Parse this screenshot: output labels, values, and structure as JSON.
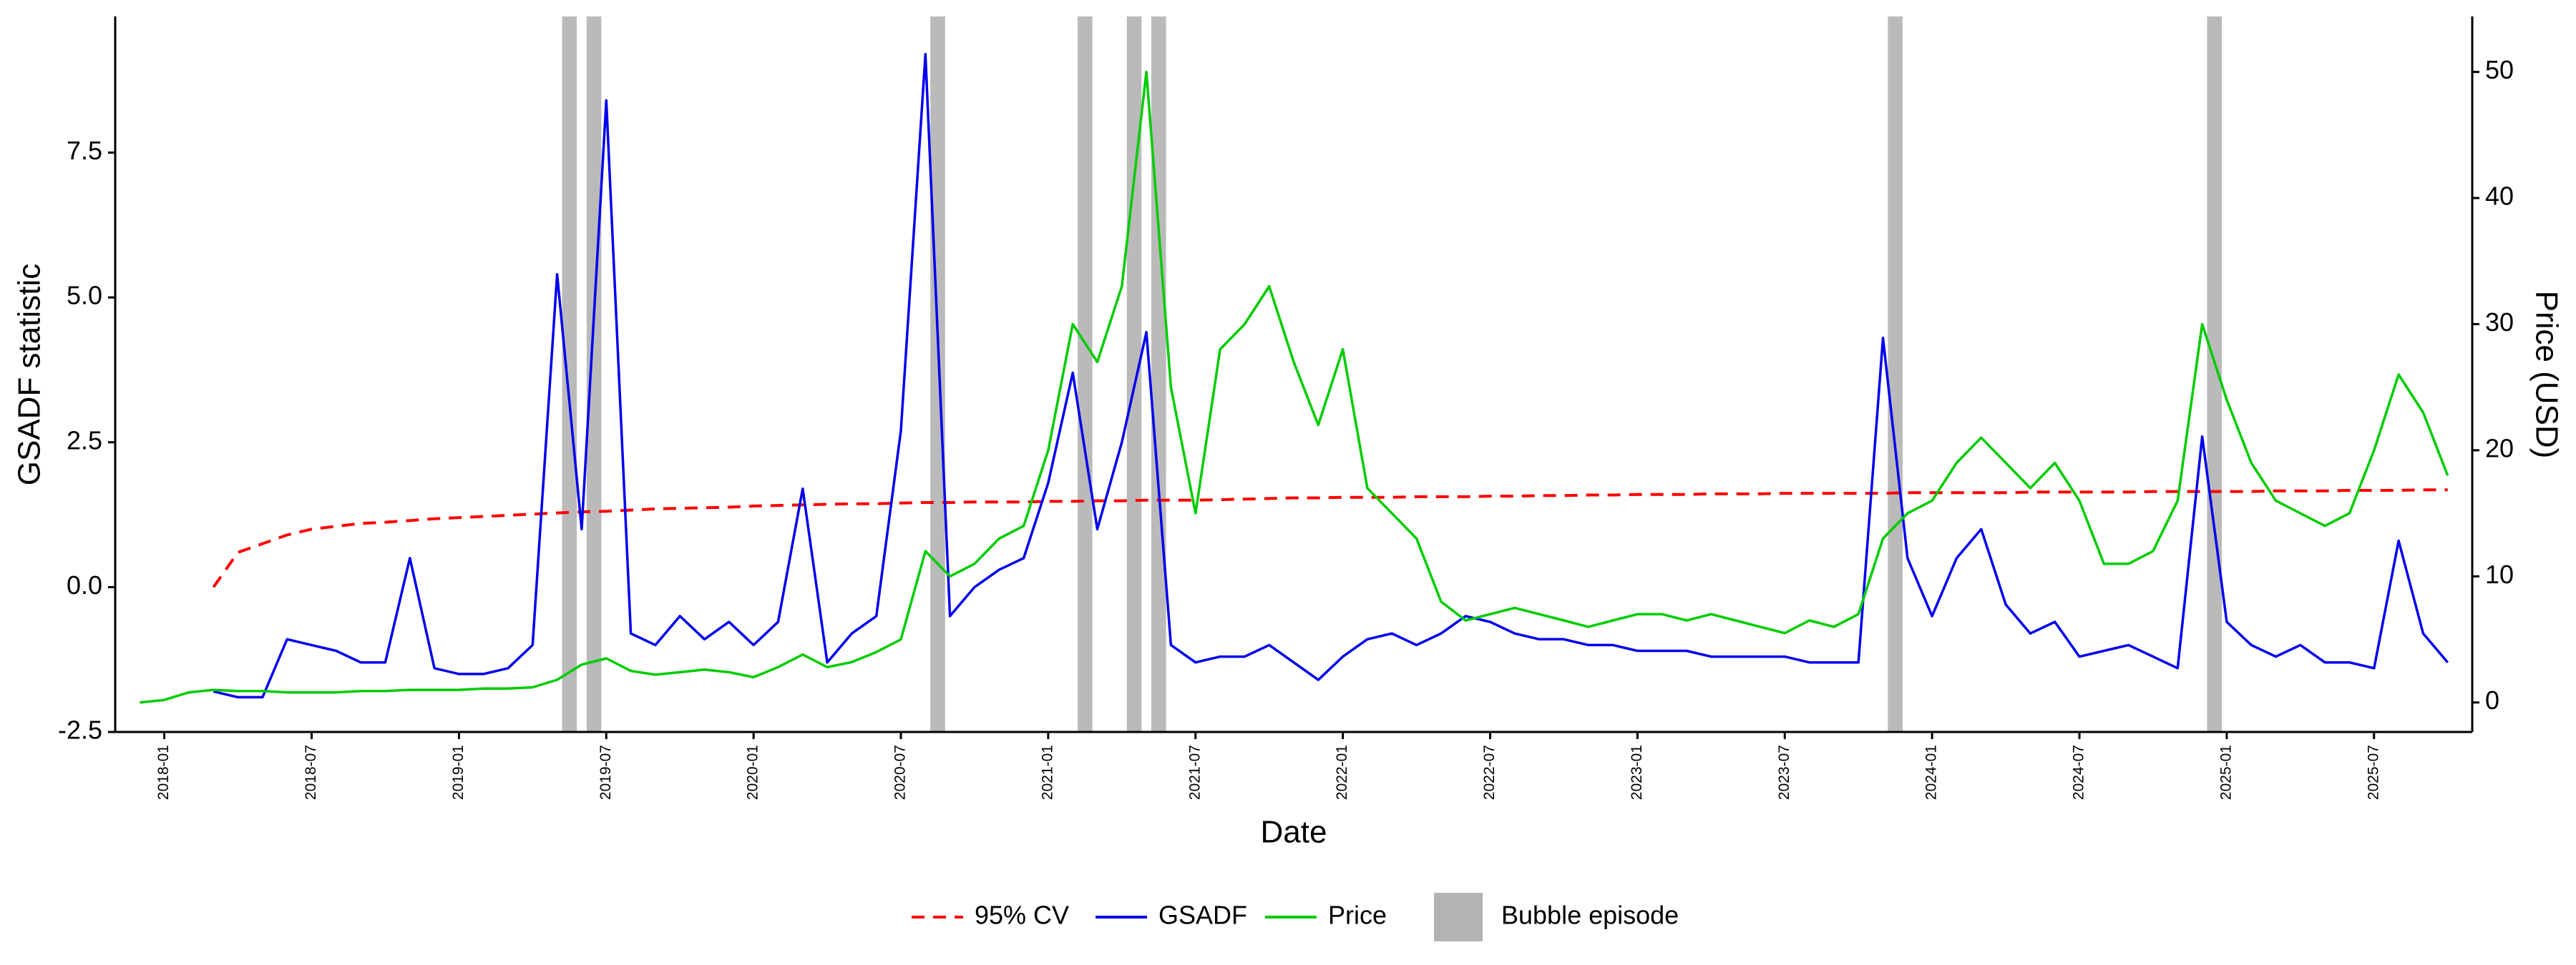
{
  "chart_data": {
    "type": "line",
    "xlabel": "Date",
    "ylabel": "GSADF statistic",
    "y2label": "Price (USD)",
    "x": [
      "2017-12",
      "2018-01",
      "2018-02",
      "2018-03",
      "2018-04",
      "2018-05",
      "2018-06",
      "2018-07",
      "2018-08",
      "2018-09",
      "2018-10",
      "2018-11",
      "2018-12",
      "2019-01",
      "2019-02",
      "2019-03",
      "2019-04",
      "2019-05",
      "2019-06",
      "2019-07",
      "2019-08",
      "2019-09",
      "2019-10",
      "2019-11",
      "2019-12",
      "2020-01",
      "2020-02",
      "2020-03",
      "2020-04",
      "2020-05",
      "2020-06",
      "2020-07",
      "2020-08",
      "2020-09",
      "2020-10",
      "2020-11",
      "2020-12",
      "2021-01",
      "2021-02",
      "2021-03",
      "2021-04",
      "2021-05",
      "2021-06",
      "2021-07",
      "2021-08",
      "2021-09",
      "2021-10",
      "2021-11",
      "2021-12",
      "2022-01",
      "2022-02",
      "2022-03",
      "2022-04",
      "2022-05",
      "2022-06",
      "2022-07",
      "2022-08",
      "2022-09",
      "2022-10",
      "2022-11",
      "2022-12",
      "2023-01",
      "2023-02",
      "2023-03",
      "2023-04",
      "2023-05",
      "2023-06",
      "2023-07",
      "2023-08",
      "2023-09",
      "2023-10",
      "2023-11",
      "2023-12",
      "2024-01",
      "2024-02",
      "2024-03",
      "2024-04",
      "2024-05",
      "2024-06",
      "2024-07",
      "2024-08",
      "2024-09",
      "2024-10",
      "2024-11",
      "2024-12",
      "2025-01",
      "2025-02",
      "2025-03",
      "2025-04",
      "2025-05",
      "2025-06",
      "2025-07",
      "2025-08",
      "2025-09",
      "2025-10"
    ],
    "series": [
      {
        "name": "95% CV",
        "color": "#ff0000",
        "line_style": "dashed",
        "values": [
          null,
          null,
          null,
          0.0,
          0.6,
          0.75,
          0.9,
          1.0,
          1.05,
          1.1,
          1.12,
          1.15,
          1.18,
          1.2,
          1.22,
          1.24,
          1.26,
          1.28,
          1.3,
          1.31,
          1.33,
          1.35,
          1.36,
          1.37,
          1.38,
          1.4,
          1.41,
          1.42,
          1.43,
          1.44,
          1.44,
          1.45,
          1.46,
          1.46,
          1.47,
          1.47,
          1.47,
          1.48,
          1.48,
          1.49,
          1.49,
          1.5,
          1.5,
          1.5,
          1.51,
          1.52,
          1.53,
          1.54,
          1.54,
          1.55,
          1.55,
          1.55,
          1.56,
          1.56,
          1.56,
          1.57,
          1.57,
          1.58,
          1.58,
          1.59,
          1.59,
          1.6,
          1.6,
          1.6,
          1.61,
          1.61,
          1.61,
          1.62,
          1.62,
          1.62,
          1.62,
          1.62,
          1.63,
          1.63,
          1.63,
          1.63,
          1.63,
          1.64,
          1.64,
          1.64,
          1.64,
          1.64,
          1.65,
          1.65,
          1.65,
          1.65,
          1.65,
          1.66,
          1.66,
          1.66,
          1.67,
          1.67,
          1.67,
          1.68,
          1.68
        ]
      },
      {
        "name": "GSADF",
        "color": "#0000ee",
        "values": [
          null,
          null,
          null,
          -1.8,
          -1.9,
          -1.9,
          -0.9,
          -1.0,
          -1.1,
          -1.3,
          -1.3,
          0.5,
          -1.4,
          -1.5,
          -1.5,
          -1.4,
          -1.0,
          5.4,
          1.0,
          8.4,
          -0.8,
          -1.0,
          -0.5,
          -0.9,
          -0.6,
          -1.0,
          -0.6,
          1.7,
          -1.3,
          -0.8,
          -0.5,
          2.7,
          9.2,
          -0.5,
          0.0,
          0.3,
          0.5,
          1.8,
          3.7,
          1.0,
          2.5,
          4.4,
          -1.0,
          -1.3,
          -1.2,
          -1.2,
          -1.0,
          -1.3,
          -1.6,
          -1.2,
          -0.9,
          -0.8,
          -1.0,
          -0.8,
          -0.5,
          -0.6,
          -0.8,
          -0.9,
          -0.9,
          -1.0,
          -1.0,
          -1.1,
          -1.1,
          -1.1,
          -1.2,
          -1.2,
          -1.2,
          -1.2,
          -1.3,
          -1.3,
          -1.3,
          4.3,
          0.5,
          -0.5,
          0.5,
          1.0,
          -0.3,
          -0.8,
          -0.6,
          -1.2,
          -1.1,
          -1.0,
          -1.2,
          -1.4,
          2.6,
          -0.6,
          -1.0,
          -1.2,
          -1.0,
          -1.3,
          -1.3,
          -1.4,
          0.8,
          -0.8,
          -1.3
        ]
      },
      {
        "name": "Price",
        "color": "#00cc00",
        "axis": "y2",
        "values": [
          0.0,
          0.2,
          0.8,
          1.0,
          0.9,
          0.9,
          0.8,
          0.8,
          0.8,
          0.9,
          0.9,
          1.0,
          1.0,
          1.0,
          1.1,
          1.1,
          1.2,
          1.8,
          3.0,
          3.5,
          2.5,
          2.2,
          2.4,
          2.6,
          2.4,
          2.0,
          2.8,
          3.8,
          2.8,
          3.2,
          4.0,
          5.0,
          12.0,
          10.0,
          11.0,
          13.0,
          14.0,
          20.0,
          30.0,
          27.0,
          33.0,
          50.0,
          25.0,
          15.0,
          28.0,
          30.0,
          33.0,
          27.0,
          22.0,
          28.0,
          17.0,
          15.0,
          13.0,
          8.0,
          6.5,
          7.0,
          7.5,
          7.0,
          6.5,
          6.0,
          6.5,
          7.0,
          7.0,
          6.5,
          7.0,
          6.5,
          6.0,
          5.5,
          6.5,
          6.0,
          7.0,
          13.0,
          15.0,
          16.0,
          19.0,
          21.0,
          19.0,
          17.0,
          19.0,
          16.0,
          11.0,
          11.0,
          12.0,
          16.0,
          30.0,
          24.0,
          19.0,
          16.0,
          15.0,
          14.0,
          15.0,
          20.0,
          26.0,
          23.0,
          18.0
        ]
      }
    ],
    "bands": {
      "name": "Bubble episode",
      "color": "#b3b3b3",
      "x": [
        "2019-05",
        "2019-06",
        "2020-08",
        "2021-02",
        "2021-04",
        "2021-05",
        "2023-11",
        "2024-12"
      ]
    },
    "xlim": [
      "2017-11",
      "2025-11"
    ],
    "xticks": [
      "2018-01",
      "2018-07",
      "2019-01",
      "2019-07",
      "2020-01",
      "2020-07",
      "2021-01",
      "2021-07",
      "2022-01",
      "2022-07",
      "2023-01",
      "2023-07",
      "2024-01",
      "2024-07",
      "2025-01",
      "2025-07"
    ],
    "ylim": [
      -2.5,
      9.85
    ],
    "yticks": [
      -2.5,
      {
        "value": 0,
        "label": "0.0"
      },
      2.5,
      {
        "value": 5,
        "label": "5.0"
      },
      7.5
    ],
    "y2lim": [
      -2.34,
      54.4
    ],
    "y2ticks": [
      0,
      10,
      20,
      30,
      40,
      50
    ],
    "grid": false
  }
}
